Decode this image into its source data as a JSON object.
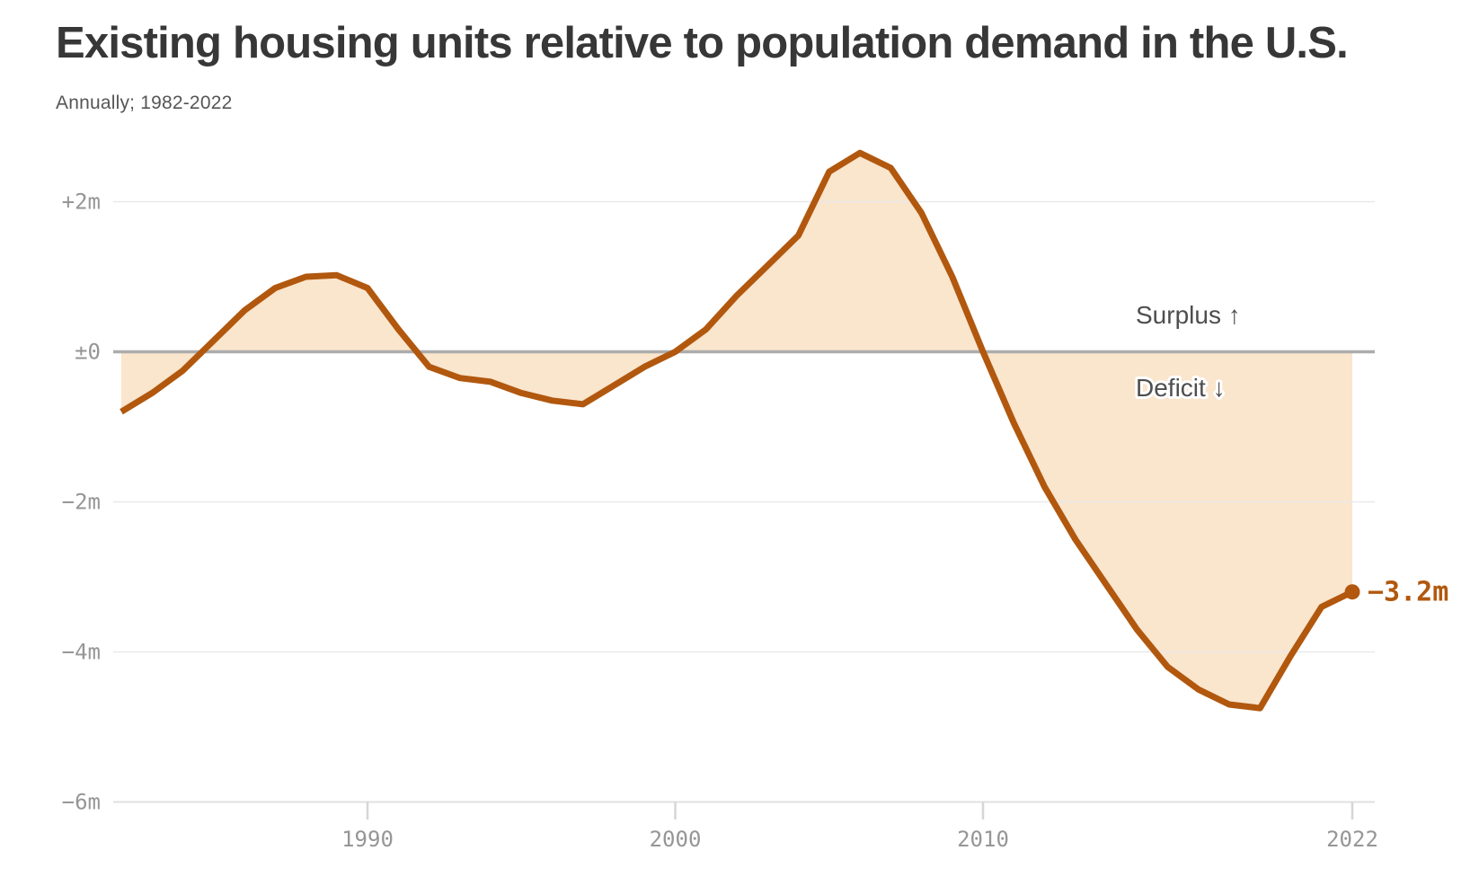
{
  "header": {
    "title": "Existing housing units relative to population demand in the U.S.",
    "subtitle": "Annually; 1982-2022"
  },
  "chart_data": {
    "type": "area",
    "title": "Existing housing units relative to population demand in the U.S.",
    "subtitle": "Annually; 1982-2022",
    "series_name": "Housing surplus/deficit (millions of units)",
    "x": [
      1982,
      1983,
      1984,
      1985,
      1986,
      1987,
      1988,
      1989,
      1990,
      1991,
      1992,
      1993,
      1994,
      1995,
      1996,
      1997,
      1998,
      1999,
      2000,
      2001,
      2002,
      2003,
      2004,
      2005,
      2006,
      2007,
      2008,
      2009,
      2010,
      2011,
      2012,
      2013,
      2014,
      2015,
      2016,
      2017,
      2018,
      2019,
      2020,
      2021,
      2022
    ],
    "values": [
      -0.8,
      -0.55,
      -0.25,
      0.15,
      0.55,
      0.85,
      1.0,
      1.02,
      0.85,
      0.3,
      -0.2,
      -0.35,
      -0.4,
      -0.55,
      -0.65,
      -0.7,
      -0.45,
      -0.2,
      0.0,
      0.3,
      0.75,
      1.15,
      1.55,
      2.4,
      2.65,
      2.45,
      1.85,
      1.0,
      0.0,
      -0.95,
      -1.8,
      -2.5,
      -3.1,
      -3.7,
      -4.2,
      -4.5,
      -4.7,
      -4.75,
      -4.05,
      -3.4,
      -3.2
    ],
    "xlim": [
      1982,
      2022
    ],
    "ylim": [
      -6,
      2.8
    ],
    "grid": "horizontal",
    "legend": "none",
    "x_ticks": [
      {
        "value": 1990,
        "label": "1990"
      },
      {
        "value": 2000,
        "label": "2000"
      },
      {
        "value": 2010,
        "label": "2010"
      },
      {
        "value": 2022,
        "label": "2022"
      }
    ],
    "y_ticks": [
      {
        "value": 2,
        "label": "+2m"
      },
      {
        "value": 0,
        "label": "±0"
      },
      {
        "value": -2,
        "label": "−2m"
      },
      {
        "value": -4,
        "label": "−4m"
      },
      {
        "value": -6,
        "label": "−6m"
      }
    ],
    "annotations": {
      "surplus_label": "Surplus ↑",
      "deficit_label": "Deficit ↓",
      "end_value_label": "−3.2m"
    },
    "colors": {
      "line": "#B1580E",
      "fill": "#FAE5CD",
      "zero_line": "#ACACAC",
      "grid_line": "#E9E9E9",
      "axis_baseline": "#E0E0E0",
      "tick_mark": "#D6D6D6",
      "axis_text": "#969696",
      "annotation_text": "#4E4E4E",
      "title_text": "#373737",
      "subtitle_text": "#565656"
    }
  }
}
